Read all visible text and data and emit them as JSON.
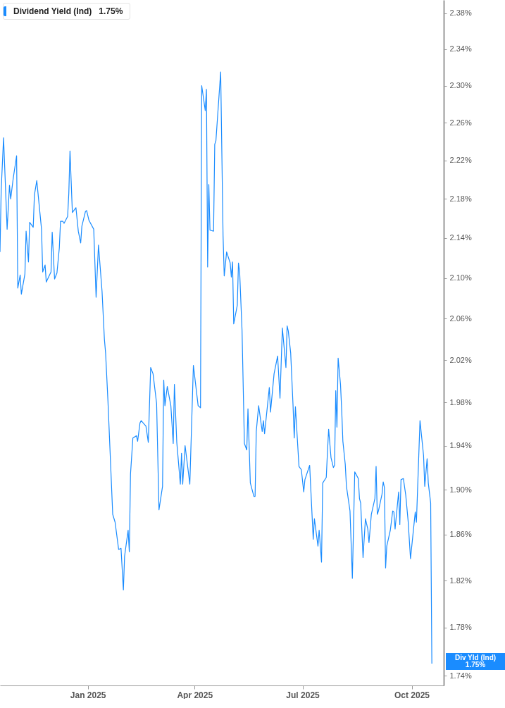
{
  "chart_data": {
    "type": "line",
    "log": "y",
    "legend": "top left",
    "marker": "none",
    "line_style": "solid",
    "xlim": [
      "2024-10-19",
      "2025-10-28"
    ],
    "xticks": [
      {
        "value": "2025-01-01",
        "label": "Jan 2025"
      },
      {
        "value": "2025-04-01",
        "label": "Apr 2025"
      },
      {
        "value": "2025-07-01",
        "label": "Jul 2025"
      },
      {
        "value": "2025-10-01",
        "label": "Oct 2025"
      }
    ],
    "ylim": [
      1.732,
      2.395
    ],
    "yticks": [
      {
        "value": 1.74,
        "label": "1.74%"
      },
      {
        "value": 1.78,
        "label": "1.78%"
      },
      {
        "value": 1.82,
        "label": "1.82%"
      },
      {
        "value": 1.86,
        "label": "1.86%"
      },
      {
        "value": 1.9,
        "label": "1.90%"
      },
      {
        "value": 1.94,
        "label": "1.94%"
      },
      {
        "value": 1.98,
        "label": "1.98%"
      },
      {
        "value": 2.02,
        "label": "2.02%"
      },
      {
        "value": 2.06,
        "label": "2.06%"
      },
      {
        "value": 2.1,
        "label": "2.10%"
      },
      {
        "value": 2.14,
        "label": "2.14%"
      },
      {
        "value": 2.18,
        "label": "2.18%"
      },
      {
        "value": 2.22,
        "label": "2.22%"
      },
      {
        "value": 2.26,
        "label": "2.26%"
      },
      {
        "value": 2.3,
        "label": "2.30%"
      },
      {
        "value": 2.34,
        "label": "2.34%"
      },
      {
        "value": 2.38,
        "label": "2.38%"
      }
    ],
    "annotations": [
      "1.75%",
      "Div Yld (Ind)",
      "1.75%"
    ],
    "series": [
      {
        "name": "Dividend Yield (Ind)",
        "color": "#1a8cff",
        "x": [
          "2024-10-19",
          "2024-10-20",
          "2024-10-22",
          "2024-10-25",
          "2024-10-27",
          "2024-10-28",
          "2024-10-30",
          "2024-11-02",
          "2024-11-03",
          "2024-11-05",
          "2024-11-06",
          "2024-11-09",
          "2024-11-10",
          "2024-11-12",
          "2024-11-13",
          "2024-11-16",
          "2024-11-17",
          "2024-11-19",
          "2024-11-23",
          "2024-11-24",
          "2024-11-26",
          "2024-11-27",
          "2024-12-01",
          "2024-12-02",
          "2024-12-04",
          "2024-12-06",
          "2024-12-08",
          "2024-12-09",
          "2024-12-11",
          "2024-12-12",
          "2024-12-15",
          "2024-12-16",
          "2024-12-17",
          "2024-12-19",
          "2024-12-22",
          "2024-12-24",
          "2024-12-26",
          "2024-12-27",
          "2024-12-30",
          "2024-12-31",
          "2025-01-02",
          "2025-01-06",
          "2025-01-08",
          "2025-01-10",
          "2025-01-13",
          "2025-01-15",
          "2025-01-16",
          "2025-01-18",
          "2025-01-22",
          "2025-01-24",
          "2025-01-27",
          "2025-01-29",
          "2025-01-31",
          "2025-02-01",
          "2025-02-04",
          "2025-02-05",
          "2025-02-06",
          "2025-02-08",
          "2025-02-11",
          "2025-02-12",
          "2025-02-14",
          "2025-02-15",
          "2025-02-19",
          "2025-02-21",
          "2025-02-23",
          "2025-02-25",
          "2025-02-28",
          "2025-03-02",
          "2025-03-05",
          "2025-03-06",
          "2025-03-07",
          "2025-03-09",
          "2025-03-12",
          "2025-03-14",
          "2025-03-15",
          "2025-03-17",
          "2025-03-20",
          "2025-03-21",
          "2025-03-22",
          "2025-03-24",
          "2025-03-28",
          "2025-03-31",
          "2025-04-04",
          "2025-04-06",
          "2025-04-07",
          "2025-04-10",
          "2025-04-11",
          "2025-04-12",
          "2025-04-13",
          "2025-04-14",
          "2025-04-17",
          "2025-04-18",
          "2025-04-19",
          "2025-04-23",
          "2025-04-25",
          "2025-04-26",
          "2025-04-28",
          "2025-05-01",
          "2025-05-02",
          "2025-05-03",
          "2025-05-04",
          "2025-05-07",
          "2025-05-08",
          "2025-05-09",
          "2025-05-11",
          "2025-05-13",
          "2025-05-15",
          "2025-05-16",
          "2025-05-18",
          "2025-05-21",
          "2025-05-22",
          "2025-05-23",
          "2025-05-25",
          "2025-05-28",
          "2025-05-29",
          "2025-05-30",
          "2025-06-03",
          "2025-06-04",
          "2025-06-07",
          "2025-06-10",
          "2025-06-12",
          "2025-06-14",
          "2025-06-17",
          "2025-06-18",
          "2025-06-19",
          "2025-06-21",
          "2025-06-23",
          "2025-06-24",
          "2025-06-25",
          "2025-06-28",
          "2025-06-30",
          "2025-07-02",
          "2025-07-03",
          "2025-07-07",
          "2025-07-10",
          "2025-07-11",
          "2025-07-14",
          "2025-07-15",
          "2025-07-17",
          "2025-07-18",
          "2025-07-21",
          "2025-07-22",
          "2025-07-23",
          "2025-07-25",
          "2025-07-27",
          "2025-07-28",
          "2025-07-29",
          "2025-07-30",
          "2025-07-31",
          "2025-08-02",
          "2025-08-03",
          "2025-08-04",
          "2025-08-06",
          "2025-08-07",
          "2025-08-10",
          "2025-08-12",
          "2025-08-14",
          "2025-08-17",
          "2025-08-18",
          "2025-08-19",
          "2025-08-21",
          "2025-08-23",
          "2025-08-25",
          "2025-08-26",
          "2025-08-28",
          "2025-08-31",
          "2025-09-01",
          "2025-09-02",
          "2025-09-03",
          "2025-09-06",
          "2025-09-07",
          "2025-09-08",
          "2025-09-09",
          "2025-09-10",
          "2025-09-13",
          "2025-09-15",
          "2025-09-16",
          "2025-09-17",
          "2025-09-20",
          "2025-09-21",
          "2025-09-22",
          "2025-09-24",
          "2025-09-26",
          "2025-09-28",
          "2025-09-30",
          "2025-10-04",
          "2025-10-05",
          "2025-10-08",
          "2025-10-11",
          "2025-10-12",
          "2025-10-14",
          "2025-10-15",
          "2025-10-17",
          "2025-10-18"
        ],
        "values": [
          2.126,
          2.189,
          2.244,
          2.149,
          2.194,
          2.18,
          2.2,
          2.225,
          2.09,
          2.103,
          2.084,
          2.104,
          2.147,
          2.116,
          2.156,
          2.151,
          2.184,
          2.199,
          2.149,
          2.106,
          2.113,
          2.096,
          2.106,
          2.146,
          2.099,
          2.105,
          2.13,
          2.157,
          2.157,
          2.155,
          2.162,
          2.186,
          2.23,
          2.166,
          2.171,
          2.147,
          2.135,
          2.152,
          2.167,
          2.168,
          2.158,
          2.149,
          2.081,
          2.133,
          2.087,
          2.04,
          2.027,
          1.981,
          1.878,
          1.871,
          1.847,
          1.848,
          1.812,
          1.841,
          1.864,
          1.845,
          1.914,
          1.947,
          1.949,
          1.944,
          1.961,
          1.963,
          1.958,
          1.943,
          2.013,
          2.007,
          1.979,
          1.882,
          1.903,
          2.001,
          1.977,
          1.995,
          1.977,
          1.942,
          1.997,
          1.943,
          1.905,
          1.933,
          1.905,
          1.94,
          1.905,
          2.015,
          1.977,
          1.975,
          2.3,
          2.273,
          2.296,
          2.111,
          2.195,
          2.148,
          2.147,
          2.237,
          2.241,
          2.315,
          2.143,
          2.102,
          2.126,
          2.115,
          2.101,
          2.116,
          2.055,
          2.073,
          2.115,
          2.106,
          2.049,
          1.942,
          1.936,
          1.974,
          1.906,
          1.894,
          1.894,
          1.953,
          1.977,
          1.953,
          1.963,
          1.951,
          1.994,
          1.971,
          2.007,
          2.024,
          1.984,
          2.051,
          2.013,
          2.053,
          2.048,
          2.027,
          1.977,
          1.947,
          1.976,
          1.921,
          1.918,
          1.898,
          1.909,
          1.922,
          1.856,
          1.874,
          1.85,
          1.864,
          1.836,
          1.906,
          1.911,
          1.934,
          1.955,
          1.929,
          1.92,
          1.922,
          1.991,
          1.957,
          2.022,
          1.997,
          1.973,
          1.944,
          1.923,
          1.903,
          1.881,
          1.822,
          1.916,
          1.91,
          1.892,
          1.888,
          1.84,
          1.874,
          1.865,
          1.853,
          1.878,
          1.892,
          1.921,
          1.878,
          1.881,
          1.896,
          1.907,
          1.902,
          1.831,
          1.85,
          1.864,
          1.881,
          1.88,
          1.865,
          1.898,
          1.869,
          1.909,
          1.91,
          1.895,
          1.872,
          1.839,
          1.88,
          1.871,
          1.963,
          1.931,
          1.903,
          1.928,
          1.906,
          1.888,
          1.75
        ]
      }
    ]
  }
}
